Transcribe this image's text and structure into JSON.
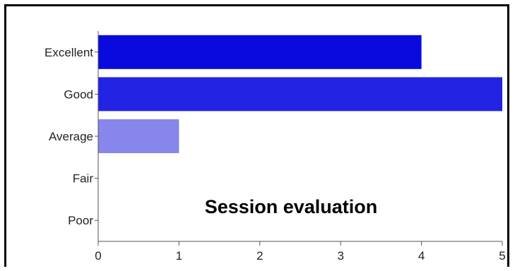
{
  "chart_data": {
    "type": "bar",
    "orientation": "horizontal",
    "title": "Session evaluation",
    "categories": [
      "Excellent",
      "Good",
      "Average",
      "Fair",
      "Poor"
    ],
    "values": [
      4,
      5,
      1,
      0,
      0
    ],
    "colors": [
      "#0a0adf",
      "#2323e3",
      "#8686ec",
      "#8686ec",
      "#8686ec"
    ],
    "xlim": [
      0,
      5
    ],
    "xticks": [
      "0",
      "1",
      "2",
      "3",
      "4",
      "5"
    ],
    "grid": false
  }
}
